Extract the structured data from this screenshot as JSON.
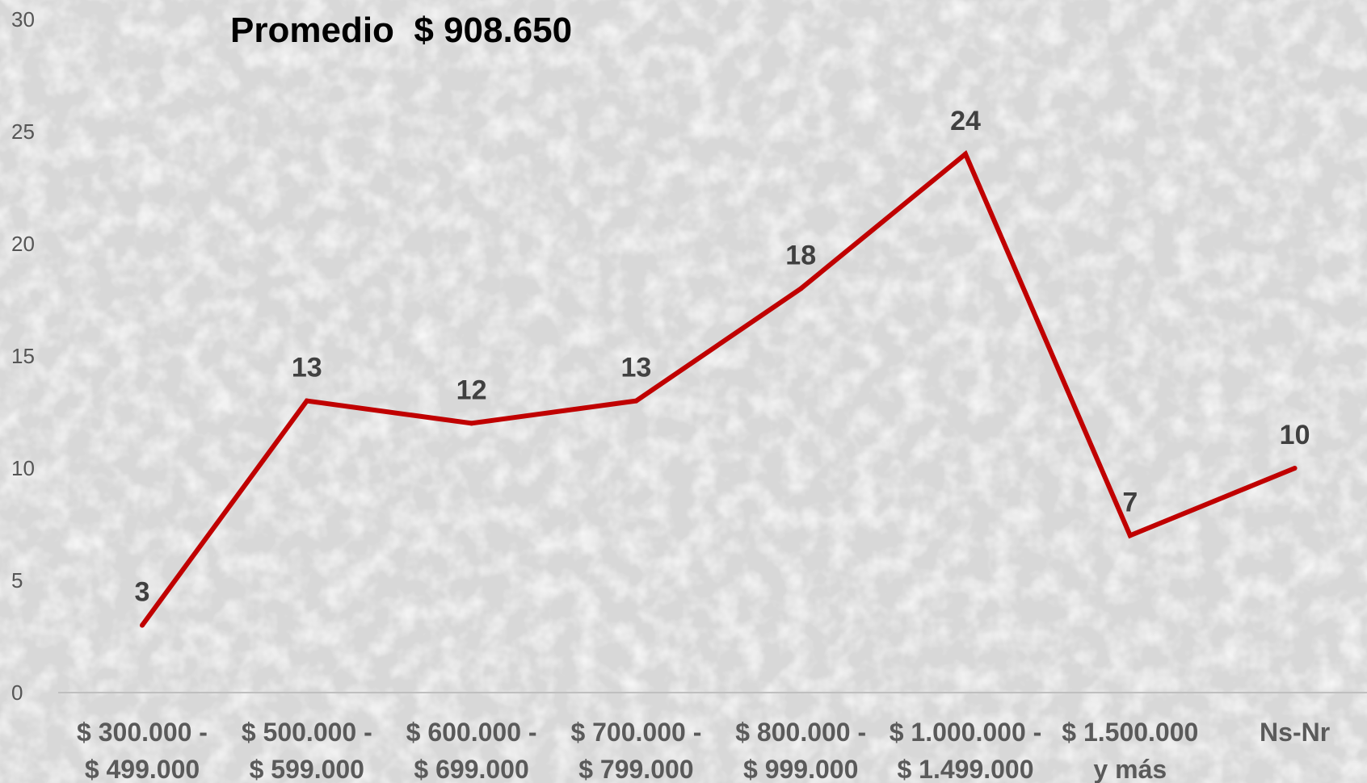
{
  "chart_data": {
    "type": "line",
    "title": "",
    "annotation": "Promedio  $ 908.650",
    "xlabel": "",
    "ylabel": "",
    "categories": [
      [
        "$ 300.000 -",
        "$ 499.000"
      ],
      [
        "$ 500.000 -",
        "$ 599.000"
      ],
      [
        "$ 600.000 -",
        "$ 699.000"
      ],
      [
        "$ 700.000 -",
        "$ 799.000"
      ],
      [
        "$ 800.000 -",
        "$ 999.000"
      ],
      [
        "$ 1.000.000 -",
        "$ 1.499.000"
      ],
      [
        "$ 1.500.000",
        "y más"
      ],
      [
        "Ns-Nr"
      ]
    ],
    "series": [
      {
        "values": [
          3,
          13,
          12,
          13,
          18,
          24,
          7,
          10
        ]
      }
    ],
    "yticks": [
      0,
      5,
      10,
      15,
      20,
      25,
      30
    ],
    "ylim": [
      0,
      30
    ],
    "grid": false,
    "legend": "none",
    "line_color": "#c00000",
    "axis_color": "#bfbfbf"
  }
}
